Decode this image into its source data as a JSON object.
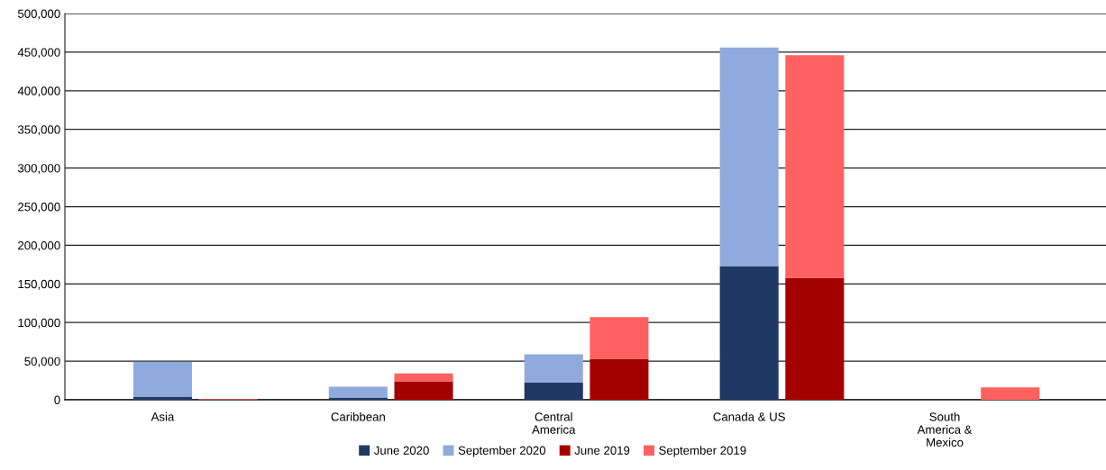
{
  "chart_data": {
    "type": "bar",
    "stacked": true,
    "categories": [
      "Asia",
      null,
      "Caribbean",
      null,
      "Central\nAmerica",
      null,
      "Canada & US",
      null,
      "South\nAmerica &\nMexico",
      null
    ],
    "series": [
      {
        "name": "June 2020",
        "color": "#1f3864",
        "values": [
          4000,
          null,
          3000,
          null,
          22000,
          null,
          173000,
          null,
          0,
          null
        ]
      },
      {
        "name": "September 2020",
        "color": "#8faadc",
        "values": [
          45000,
          null,
          14000,
          null,
          37000,
          null,
          283000,
          null,
          0,
          null
        ]
      },
      {
        "name": "June 2019",
        "color": "#a50000",
        "values": [
          null,
          0,
          null,
          24000,
          null,
          53000,
          null,
          158000,
          null,
          0
        ]
      },
      {
        "name": "September 2019",
        "color": "#ff6161",
        "values": [
          null,
          1000,
          null,
          10000,
          null,
          54000,
          null,
          288000,
          null,
          16000
        ]
      }
    ],
    "ylim": [
      0,
      500000
    ],
    "yticks": [
      {
        "value": 0,
        "label": "0"
      },
      {
        "value": 50000,
        "label": "50,000"
      },
      {
        "value": 100000,
        "label": "100,000"
      },
      {
        "value": 150000,
        "label": "150,000"
      },
      {
        "value": 200000,
        "label": "200,000"
      },
      {
        "value": 250000,
        "label": "250,000"
      },
      {
        "value": 300000,
        "label": "300,000"
      },
      {
        "value": 350000,
        "label": "350,000"
      },
      {
        "value": 400000,
        "label": "400,000"
      },
      {
        "value": 450000,
        "label": "450,000"
      },
      {
        "value": 500000,
        "label": "500,000"
      }
    ],
    "grid": "y",
    "legend": "bottom"
  }
}
